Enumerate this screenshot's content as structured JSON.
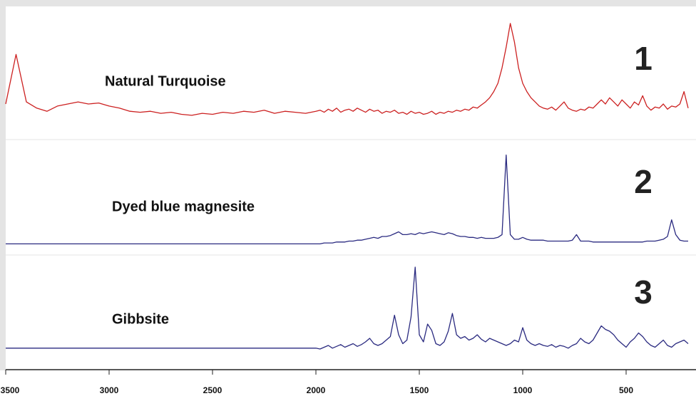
{
  "chart_data": {
    "type": "line",
    "x": [
      3500,
      3450,
      3400,
      3350,
      3300,
      3250,
      3200,
      3150,
      3100,
      3050,
      3000,
      2950,
      2900,
      2850,
      2800,
      2750,
      2700,
      2650,
      2600,
      2550,
      2500,
      2450,
      2400,
      2350,
      2300,
      2250,
      2200,
      2150,
      2100,
      2050,
      2000,
      1980,
      1960,
      1940,
      1920,
      1900,
      1880,
      1860,
      1840,
      1820,
      1800,
      1780,
      1760,
      1740,
      1720,
      1700,
      1680,
      1660,
      1640,
      1620,
      1600,
      1580,
      1560,
      1540,
      1520,
      1500,
      1480,
      1460,
      1440,
      1420,
      1400,
      1380,
      1360,
      1340,
      1320,
      1300,
      1280,
      1260,
      1240,
      1220,
      1200,
      1180,
      1160,
      1140,
      1120,
      1100,
      1080,
      1060,
      1040,
      1020,
      1000,
      980,
      960,
      940,
      920,
      900,
      880,
      860,
      840,
      820,
      800,
      780,
      760,
      740,
      720,
      700,
      680,
      660,
      640,
      620,
      600,
      580,
      560,
      540,
      520,
      500,
      480,
      460,
      440,
      420,
      400,
      380,
      360,
      340,
      320,
      300,
      280,
      260,
      240,
      220,
      200
    ],
    "series": [
      {
        "name": "Natural Turquoise",
        "label": "1",
        "color": "#cc2020",
        "values": [
          20,
          68,
          22,
          16,
          13,
          18,
          20,
          22,
          20,
          21,
          18,
          16,
          13,
          12,
          13,
          11,
          12,
          10,
          9,
          11,
          10,
          12,
          11,
          13,
          12,
          14,
          11,
          13,
          12,
          11,
          13,
          14,
          12,
          15,
          13,
          16,
          12,
          14,
          15,
          13,
          16,
          14,
          12,
          15,
          13,
          14,
          11,
          13,
          12,
          14,
          11,
          12,
          10,
          13,
          11,
          12,
          10,
          11,
          13,
          10,
          12,
          11,
          13,
          12,
          14,
          13,
          15,
          14,
          17,
          16,
          19,
          22,
          26,
          32,
          40,
          55,
          75,
          98,
          80,
          55,
          40,
          32,
          26,
          22,
          18,
          16,
          15,
          17,
          14,
          18,
          22,
          16,
          14,
          13,
          15,
          14,
          17,
          16,
          20,
          24,
          20,
          26,
          22,
          18,
          24,
          20,
          16,
          22,
          19,
          28,
          18,
          14,
          17,
          16,
          20,
          15,
          18,
          17,
          20,
          32,
          16
        ]
      },
      {
        "name": "Dyed blue magnesite",
        "label": "2",
        "color": "#2a2a80",
        "values": [
          2,
          2,
          2,
          2,
          2,
          2,
          2,
          2,
          2,
          2,
          2,
          2,
          2,
          2,
          2,
          2,
          2,
          2,
          2,
          2,
          2,
          2,
          2,
          2,
          2,
          2,
          2,
          2,
          2,
          2,
          2,
          2,
          3,
          3,
          3,
          4,
          4,
          4,
          5,
          5,
          6,
          6,
          7,
          8,
          9,
          8,
          10,
          10,
          11,
          13,
          15,
          12,
          12,
          13,
          12,
          14,
          13,
          14,
          15,
          14,
          13,
          12,
          14,
          13,
          11,
          10,
          10,
          9,
          9,
          8,
          9,
          8,
          8,
          8,
          9,
          12,
          98,
          12,
          7,
          7,
          9,
          7,
          6,
          6,
          6,
          6,
          5,
          5,
          5,
          5,
          5,
          5,
          6,
          12,
          5,
          5,
          5,
          4,
          4,
          4,
          4,
          4,
          4,
          4,
          4,
          4,
          4,
          4,
          4,
          4,
          5,
          5,
          5,
          6,
          7,
          10,
          28,
          12,
          6,
          5,
          5
        ]
      },
      {
        "name": "Gibbsite",
        "label": "3",
        "color": "#2a2a80",
        "values": [
          5,
          5,
          5,
          5,
          5,
          5,
          5,
          5,
          5,
          5,
          5,
          5,
          5,
          5,
          5,
          5,
          5,
          5,
          5,
          5,
          5,
          5,
          5,
          5,
          5,
          5,
          5,
          5,
          5,
          5,
          5,
          4,
          6,
          8,
          5,
          7,
          9,
          6,
          8,
          10,
          7,
          9,
          12,
          16,
          10,
          8,
          10,
          14,
          18,
          42,
          20,
          10,
          14,
          40,
          96,
          20,
          12,
          32,
          25,
          10,
          8,
          12,
          24,
          44,
          20,
          16,
          18,
          14,
          16,
          20,
          15,
          12,
          16,
          14,
          12,
          10,
          8,
          10,
          14,
          12,
          28,
          14,
          10,
          8,
          10,
          8,
          7,
          9,
          6,
          8,
          7,
          5,
          8,
          10,
          16,
          12,
          10,
          14,
          22,
          30,
          26,
          24,
          20,
          14,
          10,
          6,
          12,
          16,
          22,
          18,
          12,
          8,
          6,
          10,
          14,
          8,
          6,
          10,
          12,
          14,
          10
        ]
      }
    ],
    "xlim": [
      3500,
      200
    ],
    "xticks": [
      3500,
      3000,
      2500,
      2000,
      1500,
      1000,
      500
    ]
  }
}
